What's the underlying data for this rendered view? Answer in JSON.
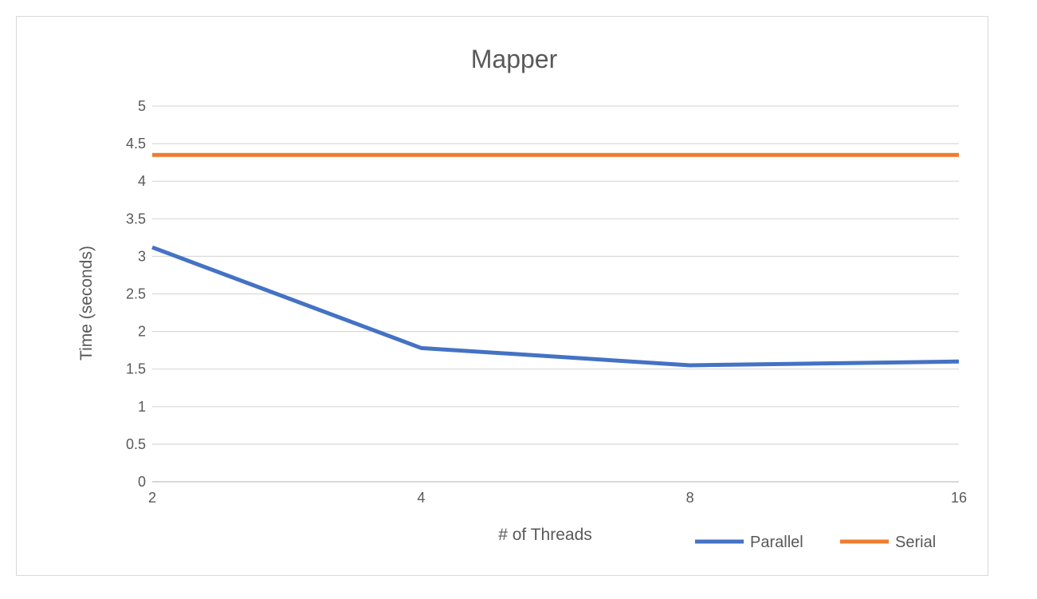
{
  "chart_data": {
    "type": "line",
    "title": "Mapper",
    "xlabel": "# of Threads",
    "ylabel": "Time (seconds)",
    "x": [
      "2",
      "4",
      "8",
      "16"
    ],
    "ylim": [
      0,
      5
    ],
    "yticks": [
      "0",
      "0.5",
      "1",
      "1.5",
      "2",
      "2.5",
      "3",
      "3.5",
      "4",
      "4.5",
      "5"
    ],
    "grid": true,
    "legend_position": "bottom-right",
    "series": [
      {
        "name": "Parallel",
        "values": [
          3.12,
          1.78,
          1.55,
          1.6
        ],
        "color": "#4472c4"
      },
      {
        "name": "Serial",
        "values": [
          4.35,
          4.35,
          4.35,
          4.35
        ],
        "color": "#ed7d31"
      }
    ]
  }
}
